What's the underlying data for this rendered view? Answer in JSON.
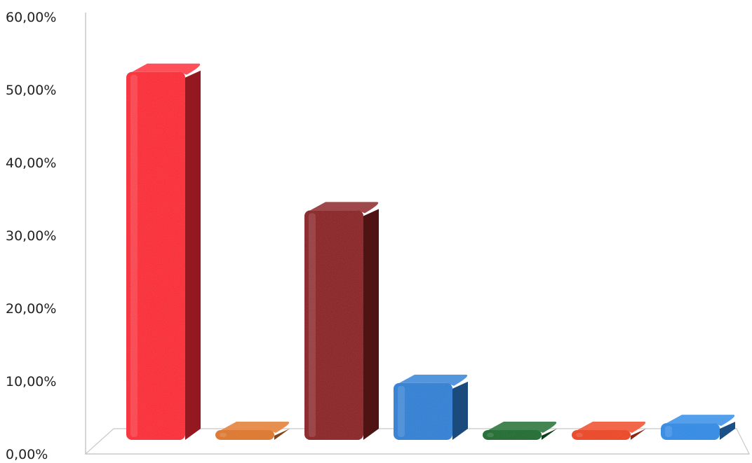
{
  "chart_data": {
    "type": "bar",
    "style": "3d",
    "title": "",
    "xlabel": "",
    "ylabel": "",
    "ylim": [
      0,
      60
    ],
    "y_ticks": [
      "0,00%",
      "10,00%",
      "20,00%",
      "30,00%",
      "40,00%",
      "50,00%",
      "60,00%"
    ],
    "categories": [
      "",
      "",
      "",
      "",
      "",
      "",
      ""
    ],
    "values": [
      50.5,
      0.7,
      31.5,
      7.8,
      0.5,
      0.7,
      2.3
    ],
    "colors": [
      "#ff2a35",
      "#e0762a",
      "#8a2023",
      "#2e7fd6",
      "#1c6a2e",
      "#ef4422",
      "#2f8ae8"
    ],
    "grid": false,
    "legend": "none"
  }
}
